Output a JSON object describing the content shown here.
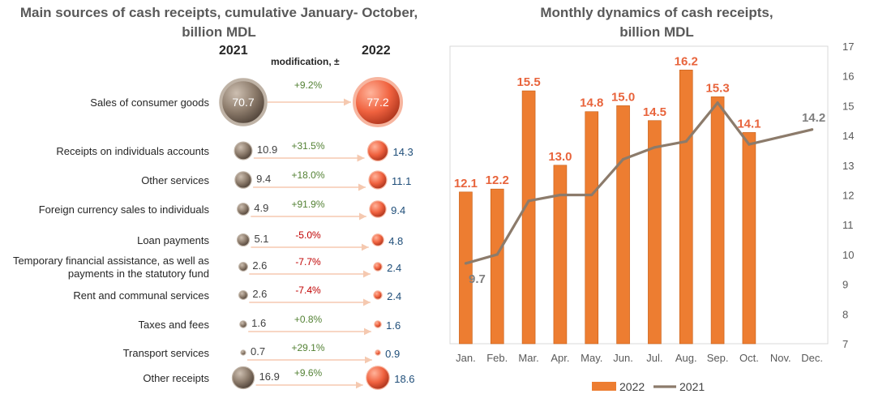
{
  "left": {
    "title_line1": "Main sources of cash receipts, cumulative January- October,",
    "title_line2": "billion MDL",
    "col_2021": "2021",
    "col_mod": "modification, ±",
    "col_2022": "2022",
    "colors": {
      "bubble_2021": "#8c7b6b",
      "bubble_2022": "#f0623f",
      "arrow": "#f5c9b0",
      "mod_positive": "#548235",
      "mod_negative": "#c00000",
      "value_2022": "#1f4e79",
      "value_2021": "#404040"
    },
    "rows": [
      {
        "label_lines": [
          "Sales of consumer goods"
        ],
        "v2021": 70.7,
        "v2021_text": "70.7",
        "mod": "+9.2%",
        "positive": true,
        "v2022": 77.2,
        "v2022_text": "77.2"
      },
      {
        "label_lines": [
          "Receipts on individuals accounts"
        ],
        "v2021": 10.9,
        "v2021_text": "10.9",
        "mod": "+31.5%",
        "positive": true,
        "v2022": 14.3,
        "v2022_text": "14.3"
      },
      {
        "label_lines": [
          "Other services"
        ],
        "v2021": 9.4,
        "v2021_text": "9.4",
        "mod": "+18.0%",
        "positive": true,
        "v2022": 11.1,
        "v2022_text": "11.1"
      },
      {
        "label_lines": [
          "Foreign currency sales to individuals"
        ],
        "v2021": 4.9,
        "v2021_text": "4.9",
        "mod": "+91.9%",
        "positive": true,
        "v2022": 9.4,
        "v2022_text": "9.4"
      },
      {
        "label_lines": [
          "Loan payments"
        ],
        "v2021": 5.1,
        "v2021_text": "5.1",
        "mod": "-5.0%",
        "positive": false,
        "v2022": 4.8,
        "v2022_text": "4.8"
      },
      {
        "label_lines": [
          "Temporary financial assistance, as well as",
          "payments in the statutory fund"
        ],
        "v2021": 2.6,
        "v2021_text": "2.6",
        "mod": "-7.7%",
        "positive": false,
        "v2022": 2.4,
        "v2022_text": "2.4"
      },
      {
        "label_lines": [
          "Rent and communal services"
        ],
        "v2021": 2.6,
        "v2021_text": "2.6",
        "mod": "-7.4%",
        "positive": false,
        "v2022": 2.4,
        "v2022_text": "2.4"
      },
      {
        "label_lines": [
          "Taxes and fees"
        ],
        "v2021": 1.6,
        "v2021_text": "1.6",
        "mod": "+0.8%",
        "positive": true,
        "v2022": 1.6,
        "v2022_text": "1.6"
      },
      {
        "label_lines": [
          "Transport services"
        ],
        "v2021": 0.7,
        "v2021_text": "0.7",
        "mod": "+29.1%",
        "positive": true,
        "v2022": 0.9,
        "v2022_text": "0.9"
      },
      {
        "label_lines": [
          "Other receipts"
        ],
        "v2021": 16.9,
        "v2021_text": "16.9",
        "mod": "+9.6%",
        "positive": true,
        "v2022": 18.6,
        "v2022_text": "18.6"
      }
    ]
  },
  "chart_data": {
    "type": "bar",
    "title_line1": "Monthly dynamics of cash receipts,",
    "title_line2": "billion MDL",
    "categories": [
      "Jan.",
      "Feb.",
      "Mar.",
      "Apr.",
      "May.",
      "Jun.",
      "Jul.",
      "Aug.",
      "Sep.",
      "Oct.",
      "Nov.",
      "Dec."
    ],
    "ylim": [
      7,
      17
    ],
    "yticks": [
      7,
      8,
      9,
      10,
      11,
      12,
      13,
      14,
      15,
      16,
      17
    ],
    "y_axis_position": "right",
    "grid": false,
    "legend_position": "bottom",
    "series": [
      {
        "name": "2022",
        "type": "bar",
        "color": "#ed7d31",
        "values": [
          12.1,
          12.2,
          15.5,
          13.0,
          14.8,
          15.0,
          14.5,
          16.2,
          15.3,
          14.1,
          null,
          null
        ],
        "labels": [
          "12.1",
          "12.2",
          "15.5",
          "13.0",
          "14.8",
          "15.0",
          "14.5",
          "16.2",
          "15.3",
          "14.1",
          "",
          ""
        ],
        "label_color": "#e8643c"
      },
      {
        "name": "2021",
        "type": "line",
        "color": "#8c7b6b",
        "values": [
          9.7,
          10.0,
          11.8,
          12.0,
          12.0,
          13.2,
          13.6,
          13.8,
          15.1,
          13.7,
          13.95,
          14.2
        ],
        "labels": [
          "9.7",
          "",
          "",
          "",
          "",
          "",
          "",
          "",
          "",
          "",
          "",
          "14.2"
        ],
        "label_color": "#7f7f7f"
      }
    ]
  }
}
